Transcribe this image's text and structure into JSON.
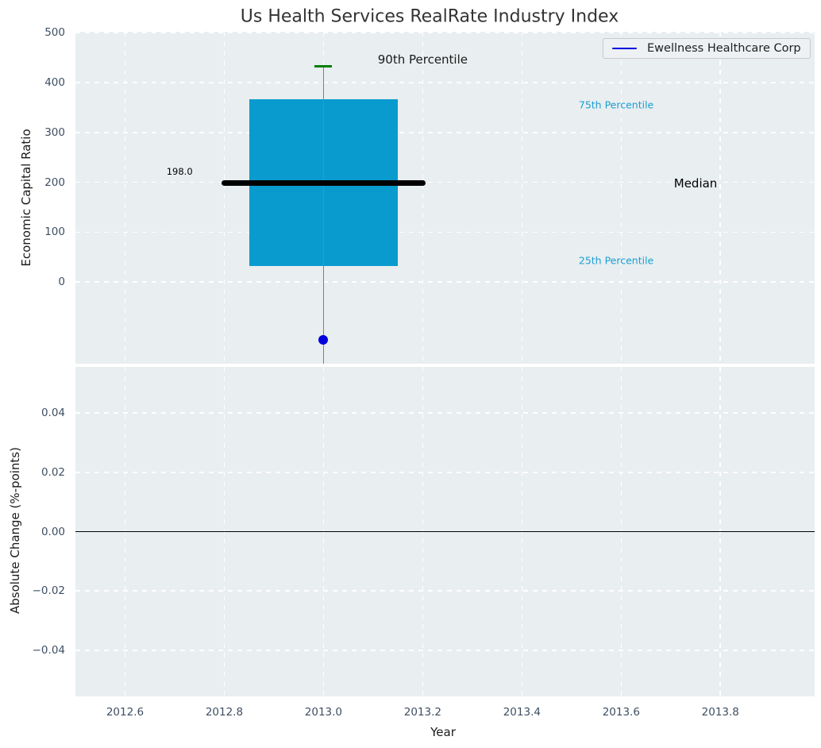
{
  "chart_data": {
    "type": "boxplot",
    "title": "Us Health Services RealRate Industry Index",
    "legend": [
      {
        "label": "Ewellness Healthcare Corp",
        "color": "#0000dd"
      }
    ],
    "colors": {
      "axes_background": "#e9eef0",
      "grid": "#ffffff",
      "box_fill": "#0a9bce",
      "median_line": "#000000",
      "whisker": "#7f7f7f",
      "percentile_cap": "#008000",
      "company_point": "#0000dd",
      "tick_label": "#3e4f63",
      "annotation_cyan": "#1b9ed2",
      "zero_line": "#000000",
      "title": "#333333"
    },
    "top_axes": {
      "ylabel": "Economic Capital Ratio",
      "xlim": [
        2012.5,
        2013.99
      ],
      "ylim": [
        -164,
        502
      ],
      "yticks": [
        {
          "v": 500,
          "label": "500"
        },
        {
          "v": 400,
          "label": "400"
        },
        {
          "v": 300,
          "label": "300"
        },
        {
          "v": 200,
          "label": "200"
        },
        {
          "v": 100,
          "label": "100"
        },
        {
          "v": 0,
          "label": "0"
        }
      ],
      "grid_style": "white dashed",
      "box": {
        "x": 2013.0,
        "x_left": 2012.85,
        "x_right": 2013.15,
        "q1": 32,
        "median": 198.0,
        "q3": 366,
        "p90": 433,
        "median_line_span": [
          2012.8,
          2013.2
        ],
        "whisker_low": "clipped below axis bottom"
      },
      "company_point": {
        "x": 2013.0,
        "value": -116
      },
      "annotations": [
        {
          "id": "90th-percentile",
          "text": "90th Percentile",
          "x": 2013.2,
          "y": 446,
          "color": "#1a1a1a",
          "size": 15
        },
        {
          "id": "75th-percentile",
          "text": "75th Percentile",
          "x": 2013.59,
          "y": 355,
          "color": "#1b9ed2",
          "size": 12.5
        },
        {
          "id": "median",
          "text": "Median",
          "x": 2013.75,
          "y": 198,
          "color": "#000000",
          "size": 15
        },
        {
          "id": "25th-percentile",
          "text": "25th Percentile",
          "x": 2013.59,
          "y": 43,
          "color": "#1b9ed2",
          "size": 12.5
        },
        {
          "id": "median-value",
          "text": "198.0",
          "x": 2012.71,
          "y": 221,
          "color": "#000000",
          "size": 11.5
        }
      ]
    },
    "bottom_axes": {
      "ylabel": "Absolute Change (%-points)",
      "xlabel": "Year",
      "xlim": [
        2012.5,
        2013.99
      ],
      "ylim": [
        -0.0555,
        0.0555
      ],
      "yticks": [
        {
          "v": 0.04,
          "label": "0.04"
        },
        {
          "v": 0.02,
          "label": "0.02"
        },
        {
          "v": 0,
          "label": "0.00"
        },
        {
          "v": -0.02,
          "label": "−0.02"
        },
        {
          "v": -0.04,
          "label": "−0.04"
        }
      ],
      "xticks": [
        {
          "v": 2012.6,
          "label": "2012.6"
        },
        {
          "v": 2012.8,
          "label": "2012.8"
        },
        {
          "v": 2013.0,
          "label": "2013.0"
        },
        {
          "v": 2013.2,
          "label": "2013.2"
        },
        {
          "v": 2013.4,
          "label": "2013.4"
        },
        {
          "v": 2013.6,
          "label": "2013.6"
        },
        {
          "v": 2013.8,
          "label": "2013.8"
        }
      ],
      "zero_line": 0.0
    }
  }
}
